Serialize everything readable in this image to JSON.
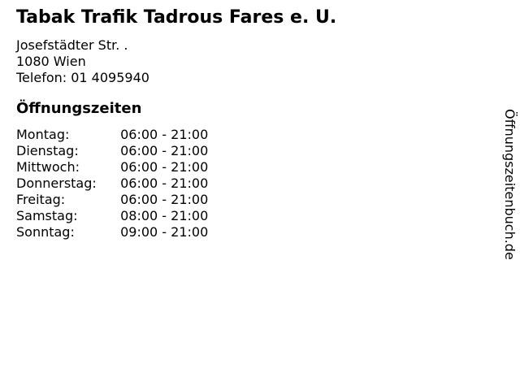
{
  "page": {
    "background": "#ffffff",
    "text_color": "#000000"
  },
  "header": {
    "title": "Tabak Trafik Tadrous Fares e. U.",
    "address_line1": "Josefstädter Str. .",
    "address_line2": "1080 Wien",
    "phone": "Telefon: 01 4095940"
  },
  "hours": {
    "heading": "Öffnungszeiten",
    "rows": [
      {
        "day": "Montag:",
        "time": "06:00 - 21:00"
      },
      {
        "day": "Dienstag:",
        "time": "06:00 - 21:00"
      },
      {
        "day": "Mittwoch:",
        "time": "06:00 - 21:00"
      },
      {
        "day": "Donnerstag:",
        "time": "06:00 - 21:00"
      },
      {
        "day": "Freitag:",
        "time": "06:00 - 21:00"
      },
      {
        "day": "Samstag:",
        "time": "08:00 - 21:00"
      },
      {
        "day": "Sonntag:",
        "time": "09:00 - 21:00"
      }
    ]
  },
  "watermark": {
    "label": "Öffnungszeitenbuch.de"
  }
}
